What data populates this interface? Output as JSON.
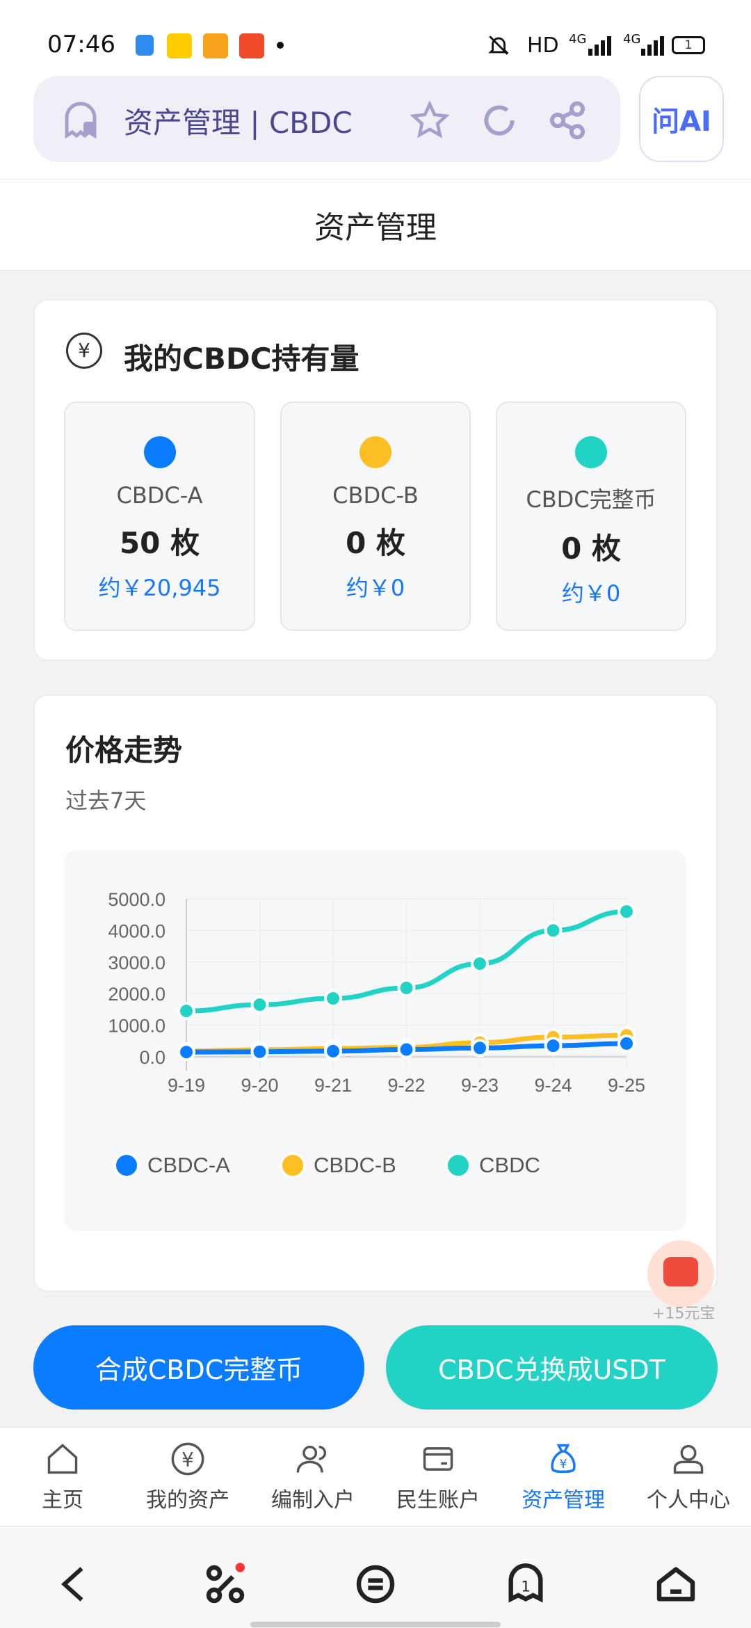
{
  "status_bar": {
    "time": "07:46",
    "battery": "1",
    "network": "4G",
    "hd": "HD"
  },
  "browser": {
    "title": "资产管理 | CBDC",
    "ai_label": "问AI"
  },
  "header": {
    "title": "资产管理"
  },
  "holdings": {
    "title": "我的CBDC持有量",
    "items": [
      {
        "name": "CBDC-A",
        "amount": "50 枚",
        "value": "约￥20,945",
        "color": "#0a7cff"
      },
      {
        "name": "CBDC-B",
        "amount": "0 枚",
        "value": "约￥0",
        "color": "#fbbf24"
      },
      {
        "name": "CBDC完整币",
        "amount": "0 枚",
        "value": "约￥0",
        "color": "#22d3c5"
      }
    ]
  },
  "trend": {
    "title": "价格走势",
    "subtitle": "过去7天"
  },
  "chart_data": {
    "type": "line",
    "categories": [
      "9-19",
      "9-20",
      "9-21",
      "9-22",
      "9-23",
      "9-24",
      "9-25"
    ],
    "ylim": [
      0,
      5000
    ],
    "yticks": [
      "0.0",
      "1000.0",
      "2000.0",
      "3000.0",
      "4000.0",
      "5000.0"
    ],
    "grid": true,
    "legend": "bottom",
    "series": [
      {
        "name": "CBDC-A",
        "color": "#0a7cff",
        "values": [
          150,
          160,
          180,
          230,
          280,
          350,
          420
        ]
      },
      {
        "name": "CBDC-B",
        "color": "#fbbf24",
        "values": [
          180,
          220,
          260,
          300,
          450,
          620,
          680
        ]
      },
      {
        "name": "CBDC",
        "color": "#22d3c5",
        "values": [
          1450,
          1650,
          1850,
          2180,
          2950,
          4000,
          4600
        ]
      }
    ]
  },
  "float_reward": {
    "label": "+15元宝"
  },
  "actions": {
    "merge": "合成CBDC完整币",
    "exchange": "CBDC兑换成USDT"
  },
  "nav": [
    {
      "label": "主页"
    },
    {
      "label": "我的资产"
    },
    {
      "label": "编制入户"
    },
    {
      "label": "民生账户"
    },
    {
      "label": "资产管理",
      "active": true
    },
    {
      "label": "个人中心"
    }
  ]
}
